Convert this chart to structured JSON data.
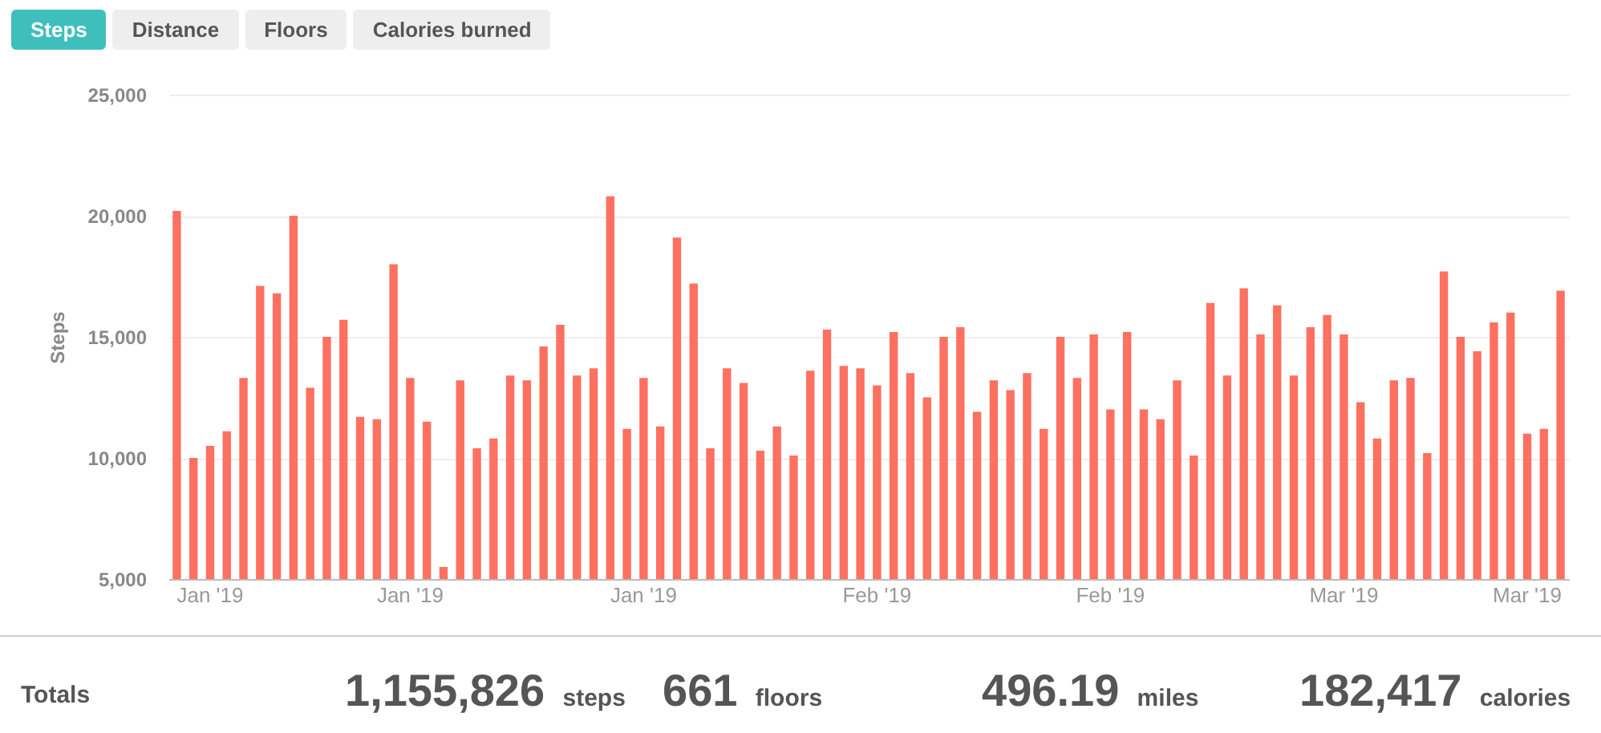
{
  "chart_data": {
    "type": "bar",
    "ylabel": "Steps",
    "categories": [
      null,
      null,
      "Jan '19",
      null,
      null,
      null,
      null,
      null,
      null,
      null,
      null,
      null,
      null,
      null,
      "Jan '19",
      null,
      null,
      null,
      null,
      null,
      null,
      null,
      null,
      null,
      null,
      null,
      null,
      null,
      "Jan '19",
      null,
      null,
      null,
      null,
      null,
      null,
      null,
      null,
      null,
      null,
      null,
      null,
      null,
      "Feb '19",
      null,
      null,
      null,
      null,
      null,
      null,
      null,
      null,
      null,
      null,
      null,
      null,
      null,
      "Feb '19",
      null,
      null,
      null,
      null,
      null,
      null,
      null,
      null,
      null,
      null,
      null,
      null,
      null,
      "Mar '19",
      null,
      null,
      null,
      null,
      null,
      null,
      null,
      null,
      null,
      null,
      "Mar '19",
      null,
      null
    ],
    "values": [
      20200,
      10000,
      10500,
      11100,
      13300,
      17100,
      16800,
      20000,
      12900,
      15000,
      15700,
      11700,
      11600,
      18000,
      13300,
      11500,
      5500,
      13200,
      10400,
      10800,
      13400,
      13200,
      14600,
      15500,
      13400,
      13700,
      20800,
      11200,
      13300,
      11300,
      19100,
      17200,
      10400,
      13700,
      13100,
      10300,
      11300,
      10100,
      13600,
      15300,
      13800,
      13700,
      13000,
      15200,
      13500,
      12500,
      15000,
      15400,
      11900,
      13200,
      12800,
      13500,
      11200,
      15000,
      13300,
      15100,
      12000,
      15200,
      12000,
      11600,
      13200,
      10100,
      16400,
      13400,
      17000,
      15100,
      16300,
      13400,
      15400,
      15900,
      15100,
      12300,
      10800,
      13200,
      13300,
      10200,
      17700,
      15000,
      14400,
      15600,
      16000,
      11000,
      11200,
      16900
    ],
    "color": "#fe7060",
    "ylim": [
      5000,
      25000
    ],
    "yticks": [
      {
        "value": 5000,
        "label": "5,000"
      },
      {
        "value": 10000,
        "label": "10,000"
      },
      {
        "value": 15000,
        "label": "15,000"
      },
      {
        "value": 20000,
        "label": "20,000"
      },
      {
        "value": 25000,
        "label": "25,000"
      }
    ],
    "grid": "y",
    "annotations": [
      "Steps",
      "Distance",
      "Floors",
      "Calories burned",
      "Totals",
      "1,155,826 steps",
      "661 floors",
      "496.19 miles",
      "182,417 calories"
    ]
  }
}
